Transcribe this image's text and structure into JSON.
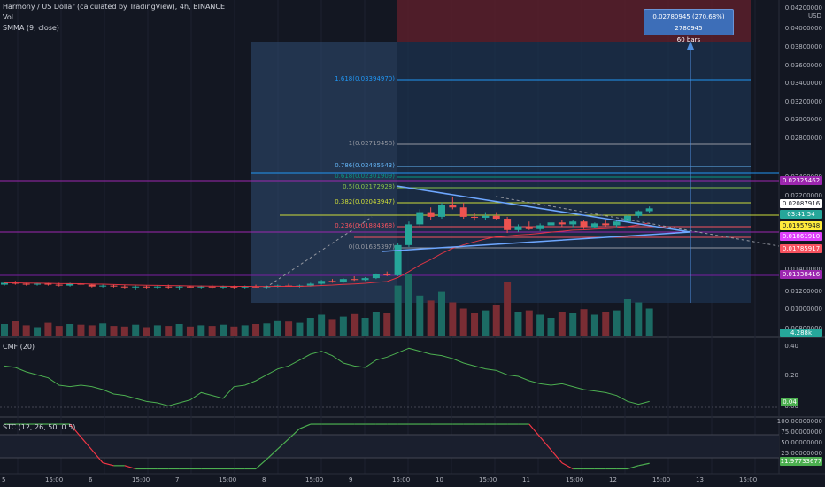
{
  "header": {
    "title": "Harmony / US Dollar (calculated by TradingView), 4h, BINANCE",
    "vol": "Vol",
    "smma": "SMMA (9, close)",
    "currency": "USD"
  },
  "price_axis": {
    "ticks": [
      "0.04200000",
      "0.04000000",
      "0.03800000",
      "0.03600000",
      "0.03400000",
      "0.03200000",
      "0.03000000",
      "0.02800000",
      "0.02400000",
      "0.02200000",
      "0.01400000",
      "0.01200000",
      "0.01000000",
      "0.00800000"
    ],
    "tags": [
      {
        "label": "0.02325462",
        "bg": "#9c27b0",
        "fg": "#ffffff"
      },
      {
        "label": "0.02087916",
        "bg": "#ffffff",
        "fg": "#131722"
      },
      {
        "label": "03:41:54",
        "bg": "#26a69a",
        "fg": "#ffffff"
      },
      {
        "label": "0.01957948",
        "bg": "#ffeb3b",
        "fg": "#131722"
      },
      {
        "label": "0.01861910",
        "bg": "#e040fb",
        "fg": "#ffffff"
      },
      {
        "label": "0.01785917",
        "bg": "#f7525f",
        "fg": "#ffffff"
      },
      {
        "label": "0.01338416",
        "bg": "#9c27b0",
        "fg": "#ffffff"
      },
      {
        "label": "4.288k",
        "bg": "#26a69a",
        "fg": "#ffffff"
      }
    ]
  },
  "fib": [
    {
      "label": "1.618(0.03394970)",
      "color": "#2196f3"
    },
    {
      "label": "1(0.02719458)",
      "color": "#9598a1"
    },
    {
      "label": "0.786(0.02485543)",
      "color": "#64b5f6"
    },
    {
      "label": "0.618(0.02301909)",
      "color": "#089981"
    },
    {
      "label": "0.5(0.02172928)",
      "color": "#8bc34a"
    },
    {
      "label": "0.382(0.02043947)",
      "color": "#cddc39"
    },
    {
      "label": "0.236(0.01884368)",
      "color": "#f7525f"
    },
    {
      "label": "0(0.01635397)",
      "color": "#9598a1"
    }
  ],
  "measure": {
    "line1": "0.02780945 (270.68%) 2780945",
    "line2": "60 bars"
  },
  "cmf": {
    "label": "CMF (20)",
    "ticks": [
      "0.40",
      "0.20",
      "0.00"
    ],
    "value": "0.04",
    "value_bg": "#4caf50"
  },
  "stc": {
    "label": "STC (12, 26, 50, 0.5)",
    "ticks": [
      "100.00000000",
      "75.00000000",
      "50.00000000",
      "25.00000000",
      "0.00000000"
    ],
    "value": "11.97733677",
    "value_bg": "#4caf50"
  },
  "time_axis": [
    "5",
    "15:00",
    "6",
    "15:00",
    "7",
    "15:00",
    "8",
    "15:00",
    "9",
    "15:00",
    "10",
    "15:00",
    "11",
    "15:00",
    "12",
    "15:00",
    "13",
    "15:00"
  ],
  "chart_data": {
    "type": "candlestick",
    "title": "Harmony / US Dollar (calculated by TradingView), 4h, BINANCE",
    "ohlc": [
      [
        0.0128,
        0.0131,
        0.0127,
        0.013
      ],
      [
        0.013,
        0.0132,
        0.0128,
        0.0129
      ],
      [
        0.0129,
        0.013,
        0.0127,
        0.0128
      ],
      [
        0.0128,
        0.013,
        0.0127,
        0.0129
      ],
      [
        0.0129,
        0.013,
        0.0127,
        0.0128
      ],
      [
        0.0128,
        0.013,
        0.0126,
        0.0127
      ],
      [
        0.0127,
        0.013,
        0.0126,
        0.0129
      ],
      [
        0.0129,
        0.0131,
        0.0127,
        0.0128
      ],
      [
        0.0128,
        0.0129,
        0.0125,
        0.0126
      ],
      [
        0.0126,
        0.0128,
        0.0125,
        0.0127
      ],
      [
        0.0127,
        0.0128,
        0.0125,
        0.0126
      ],
      [
        0.0126,
        0.0128,
        0.0124,
        0.0125
      ],
      [
        0.0125,
        0.0127,
        0.0123,
        0.0126
      ],
      [
        0.0126,
        0.0127,
        0.0124,
        0.0125
      ],
      [
        0.0125,
        0.0127,
        0.0124,
        0.0126
      ],
      [
        0.0126,
        0.0128,
        0.0124,
        0.0125
      ],
      [
        0.0125,
        0.0127,
        0.0123,
        0.0126
      ],
      [
        0.0126,
        0.0127,
        0.0125,
        0.0125
      ],
      [
        0.0125,
        0.0127,
        0.0124,
        0.0126
      ],
      [
        0.0126,
        0.0128,
        0.0124,
        0.0125
      ],
      [
        0.0125,
        0.0127,
        0.0124,
        0.0126
      ],
      [
        0.0126,
        0.0127,
        0.0124,
        0.0125
      ],
      [
        0.0125,
        0.0127,
        0.0124,
        0.0126
      ],
      [
        0.0126,
        0.0128,
        0.0125,
        0.0125
      ],
      [
        0.0125,
        0.0127,
        0.0124,
        0.0126
      ],
      [
        0.0126,
        0.0128,
        0.0125,
        0.0127
      ],
      [
        0.0127,
        0.0129,
        0.0126,
        0.0126
      ],
      [
        0.0126,
        0.0128,
        0.0125,
        0.0127
      ],
      [
        0.0127,
        0.013,
        0.0126,
        0.0129
      ],
      [
        0.0129,
        0.0133,
        0.0128,
        0.0132
      ],
      [
        0.0132,
        0.0134,
        0.013,
        0.0131
      ],
      [
        0.0131,
        0.0135,
        0.013,
        0.0134
      ],
      [
        0.0134,
        0.0137,
        0.0132,
        0.0133
      ],
      [
        0.0133,
        0.0136,
        0.0132,
        0.0135
      ],
      [
        0.0135,
        0.014,
        0.0134,
        0.0139
      ],
      [
        0.0139,
        0.0142,
        0.0137,
        0.0138
      ],
      [
        0.0138,
        0.0172,
        0.0137,
        0.017
      ],
      [
        0.017,
        0.0195,
        0.0168,
        0.0192
      ],
      [
        0.0192,
        0.0208,
        0.019,
        0.0205
      ],
      [
        0.0205,
        0.021,
        0.0197,
        0.02
      ],
      [
        0.02,
        0.0215,
        0.0198,
        0.0213
      ],
      [
        0.0213,
        0.0221,
        0.0208,
        0.021
      ],
      [
        0.021,
        0.0215,
        0.0198,
        0.02
      ],
      [
        0.02,
        0.0204,
        0.0196,
        0.0199
      ],
      [
        0.0199,
        0.0205,
        0.0197,
        0.0201
      ],
      [
        0.0201,
        0.0205,
        0.0197,
        0.0198
      ],
      [
        0.0198,
        0.02,
        0.0183,
        0.0186
      ],
      [
        0.0186,
        0.0192,
        0.0184,
        0.019
      ],
      [
        0.019,
        0.0195,
        0.0186,
        0.0187
      ],
      [
        0.0187,
        0.0193,
        0.0185,
        0.0191
      ],
      [
        0.0191,
        0.0196,
        0.0189,
        0.0194
      ],
      [
        0.0194,
        0.0197,
        0.019,
        0.0192
      ],
      [
        0.0192,
        0.0197,
        0.0189,
        0.0195
      ],
      [
        0.0195,
        0.0197,
        0.0187,
        0.0189
      ],
      [
        0.0189,
        0.0194,
        0.0188,
        0.0193
      ],
      [
        0.0193,
        0.0197,
        0.019,
        0.0191
      ],
      [
        0.0191,
        0.0196,
        0.0189,
        0.0195
      ],
      [
        0.0195,
        0.0202,
        0.0194,
        0.0201
      ],
      [
        0.0201,
        0.0207,
        0.0199,
        0.0206
      ],
      [
        0.0206,
        0.0211,
        0.0204,
        0.0209
      ]
    ],
    "volume": [
      20,
      25,
      18,
      15,
      22,
      17,
      20,
      19,
      18,
      21,
      17,
      16,
      19,
      15,
      18,
      17,
      20,
      16,
      18,
      17,
      19,
      16,
      18,
      20,
      21,
      26,
      24,
      22,
      30,
      35,
      28,
      32,
      36,
      30,
      40,
      38,
      82,
      100,
      66,
      58,
      72,
      55,
      45,
      38,
      42,
      50,
      88,
      40,
      42,
      35,
      30,
      40,
      38,
      44,
      35,
      40,
      42,
      60,
      55,
      45
    ],
    "ylim": [
      0.0075,
      0.043
    ]
  }
}
